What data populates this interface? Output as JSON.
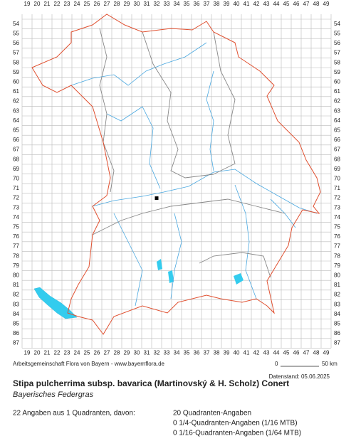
{
  "map": {
    "columns": [
      19,
      20,
      21,
      22,
      23,
      24,
      25,
      26,
      27,
      28,
      29,
      30,
      31,
      32,
      33,
      34,
      35,
      36,
      37,
      38,
      39,
      40,
      41,
      42,
      43,
      44,
      45,
      46,
      47,
      48,
      49
    ],
    "rows": [
      54,
      55,
      56,
      57,
      58,
      59,
      60,
      61,
      62,
      63,
      64,
      65,
      66,
      67,
      68,
      69,
      70,
      71,
      72,
      73,
      74,
      75,
      76,
      77,
      78,
      79,
      80,
      81,
      82,
      83,
      84,
      85,
      86,
      87
    ],
    "records": [
      {
        "column": 32,
        "row": 72
      }
    ]
  },
  "footer": {
    "credit": "Arbeitsgemeinschaft Flora von Bayern - www.bayernflora.de",
    "scale_start": "0",
    "scale_end": "50 km",
    "date": "Datenstand: 05.06.2025"
  },
  "species": {
    "name": "Stipa pulcherrima subsp. bavarica (Martinovský & H. Scholz) Conert",
    "common_name": "Bayerisches Federgras"
  },
  "summary": {
    "total": "22 Angaben aus 1 Quadranten, davon:",
    "quadrants": "20 Quadranten-Angaben",
    "quarter": "0 1/4-Quadranten-Angaben (1/16 MTB)",
    "sixteenth": "0 1/16-Quadranten-Angaben (1/64 MTB)"
  }
}
